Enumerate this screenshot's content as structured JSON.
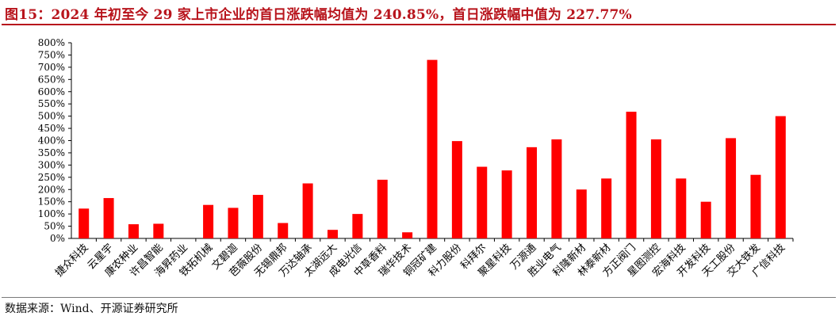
{
  "title": "图15：2024 年初至今 29 家上市企业的首日涨跌幅均值为 240.85%，首日涨跌幅中值为 227.77%",
  "source": "数据来源：Wind、开源证券研究所",
  "colors": {
    "title": "#b8141c",
    "bar": "#ff0000",
    "axis": "#000000"
  },
  "chart_data": {
    "type": "bar",
    "title": "",
    "xlabel": "",
    "ylabel": "",
    "ylim": [
      0,
      800
    ],
    "yticks": [
      0,
      50,
      100,
      150,
      200,
      250,
      300,
      350,
      400,
      450,
      500,
      550,
      600,
      650,
      700,
      750,
      800
    ],
    "tick_format": "percent",
    "grid": false,
    "legend": "none",
    "categories": [
      "捷众科技",
      "云星宇",
      "康农种业",
      "许昌智能",
      "海昇药业",
      "铁拓机械",
      "文碧迦",
      "芭薇股份",
      "无锡鼎邦",
      "万达轴承",
      "太湖远大",
      "成电光信",
      "中草香料",
      "瑞华技术",
      "铜冠矿建",
      "科力股份",
      "科拜尔",
      "聚星科技",
      "万源通",
      "胜业电气",
      "科隆新材",
      "林泰新材",
      "方正阀门",
      "星图测控",
      "宏海科技",
      "开发科技",
      "天工股份",
      "交大铁发",
      "广信科技"
    ],
    "series": [
      {
        "values": [
          122,
          165,
          58,
          60,
          0,
          137,
          125,
          178,
          63,
          225,
          35,
          100,
          240,
          25,
          730,
          398,
          293,
          278,
          373,
          405,
          200,
          245,
          518,
          405,
          245,
          150,
          410,
          260,
          500
        ]
      }
    ]
  }
}
